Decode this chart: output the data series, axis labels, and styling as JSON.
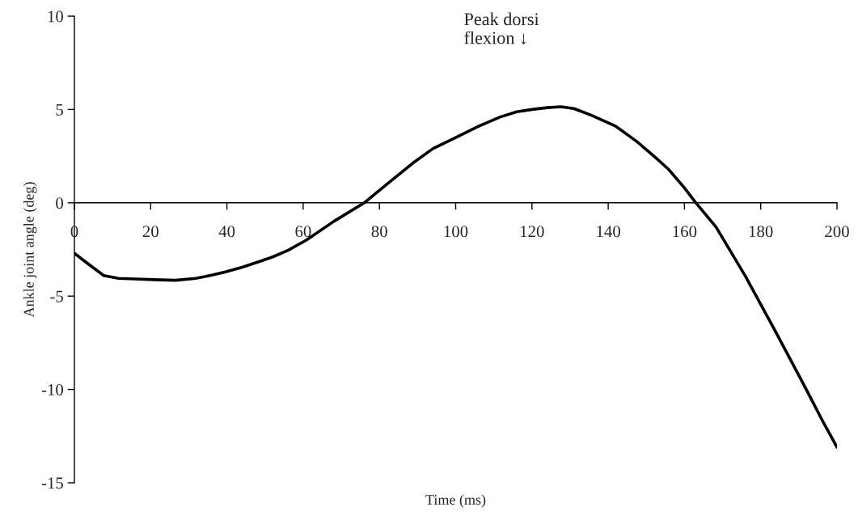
{
  "chart_data": {
    "type": "line",
    "xlabel": "Time (ms)",
    "ylabel": "Ankle joint angle (deg)",
    "x": [
      0,
      3.8,
      7.7,
      11.6,
      16,
      21,
      26.5,
      31.8,
      36,
      39.6,
      44,
      48,
      52,
      56,
      60.8,
      68,
      76,
      82,
      88.6,
      94,
      100,
      106,
      111.7,
      116,
      120,
      124,
      127.6,
      131,
      135.5,
      142,
      147.4,
      152,
      155.8,
      160,
      163,
      168.3,
      175.9,
      183.9,
      191.7,
      196,
      200
    ],
    "series": [
      {
        "color": "#000000",
        "values": [
          -2.7,
          -3.3,
          -3.9,
          -4.05,
          -4.08,
          -4.12,
          -4.15,
          -4.05,
          -3.88,
          -3.7,
          -3.45,
          -3.18,
          -2.9,
          -2.55,
          -2.0,
          -1.0,
          0.0,
          1.0,
          2.1,
          2.9,
          3.5,
          4.1,
          4.6,
          4.88,
          5.0,
          5.1,
          5.15,
          5.05,
          4.7,
          4.1,
          3.3,
          2.5,
          1.8,
          0.8,
          0.0,
          -1.3,
          -3.9,
          -6.9,
          -9.9,
          -11.6,
          -13.1
        ]
      }
    ],
    "xlim": [
      0,
      200
    ],
    "ylim": [
      -15,
      10
    ],
    "xticks": [
      0,
      20,
      40,
      60,
      80,
      100,
      120,
      140,
      160,
      180,
      200
    ],
    "yticks": [
      -15,
      -10,
      -5,
      0,
      5,
      10
    ],
    "annotations": [
      "Peak dorsi\nflexion ↓"
    ],
    "grid": false,
    "legend": false,
    "marker": "none",
    "line_style": "solid"
  }
}
